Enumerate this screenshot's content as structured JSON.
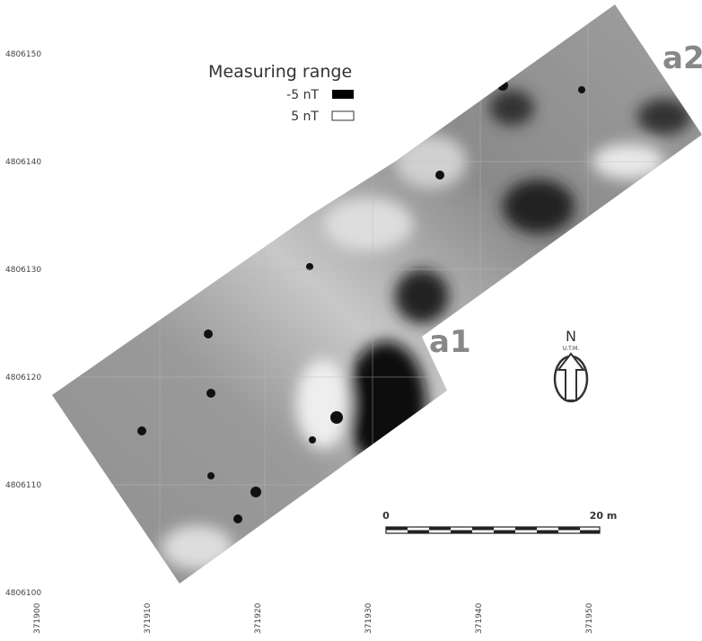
{
  "map": {
    "y_axis_labels": [
      4806150,
      4806140,
      4806130,
      4806120,
      4806110,
      4806100
    ],
    "x_axis_labels": [
      371900,
      371910,
      371920,
      371930,
      371940,
      371950
    ],
    "legend": {
      "title": "Measuring range",
      "items": [
        "-5 nT",
        "5 nT"
      ]
    },
    "area_labels": [
      "a1",
      "a2"
    ],
    "north_arrow": {
      "label": "N",
      "sublabel": "U.T.M."
    },
    "scale_bar": {
      "start": "0",
      "end": "20 m"
    }
  }
}
